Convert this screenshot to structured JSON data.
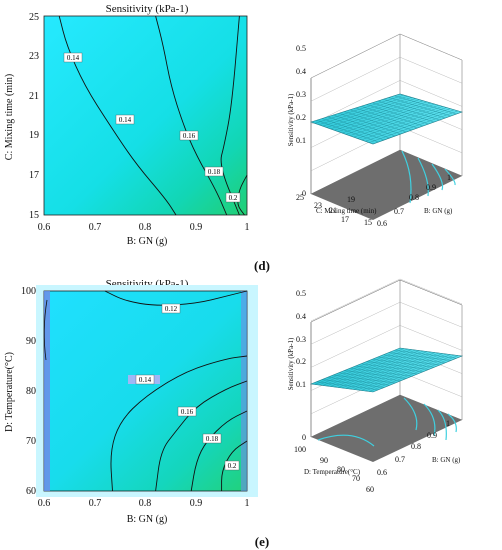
{
  "panels": [
    {
      "label": "(d)",
      "contour": {
        "title": "Sensitivity (kPa-1)",
        "xlabel": "B: GN (g)",
        "ylabel": "C: Mixing time (min)",
        "xticks": [
          "0.6",
          "0.7",
          "0.8",
          "0.9",
          "1"
        ],
        "yticks": [
          "15",
          "17",
          "19",
          "21",
          "23",
          "25"
        ]
      },
      "surface": {
        "zlabel": "Sensitivity (kPa-1)",
        "zticks": [
          "0",
          "0.1",
          "0.2",
          "0.3",
          "0.4",
          "0.5"
        ],
        "xlabel": "B: GN (g)",
        "xticks": [
          "0.6",
          "0.7",
          "0.8",
          "0.9",
          "1"
        ],
        "ylabel": "C: Mixing time (min)",
        "yticks": [
          "15",
          "17",
          "19",
          "21",
          "23",
          "25"
        ]
      }
    },
    {
      "label": "(e)",
      "contour": {
        "title": "Sensitivity (kPa-1)",
        "xlabel": "B: GN (g)",
        "ylabel": "D: Temperature(°C)",
        "xticks": [
          "0.6",
          "0.7",
          "0.8",
          "0.9",
          "1"
        ],
        "yticks": [
          "60",
          "70",
          "80",
          "90",
          "100"
        ]
      },
      "surface": {
        "zlabel": "Sensitivity (kPa-1)",
        "zticks": [
          "0",
          "0.1",
          "0.2",
          "0.3",
          "0.4",
          "0.5"
        ],
        "xlabel": "B: GN (g)",
        "xticks": [
          "0.6",
          "0.7",
          "0.8",
          "0.9",
          "1"
        ],
        "ylabel": "D: Temperature(°C)",
        "yticks": [
          "60",
          "70",
          "80",
          "90",
          "100"
        ]
      }
    }
  ],
  "colors": {
    "low": "#1ee6ff",
    "mid": "#12d8c8",
    "high": "#22d47a",
    "floor": "#6b6b6b",
    "contour_line": "#111111"
  },
  "chart_data": [
    {
      "type": "heatmap",
      "title": "Sensitivity (kPa-1)",
      "xlabel": "B: GN (g)",
      "ylabel": "C: Mixing time (min)",
      "xlim": [
        0.6,
        1
      ],
      "ylim": [
        15,
        25
      ],
      "contours": [
        {
          "level": 0.14,
          "label": "0.14",
          "points": [
            [
              0.63,
              25
            ],
            [
              0.645,
              23.5
            ],
            [
              0.68,
              21.5
            ],
            [
              0.73,
              19.5
            ],
            [
              0.78,
              17.6
            ],
            [
              0.84,
              15.8
            ],
            [
              0.86,
              15
            ]
          ]
        },
        {
          "level": 0.16,
          "label": "0.16",
          "points": [
            [
              0.82,
              25
            ],
            [
              0.835,
              23.5
            ],
            [
              0.85,
              21.5
            ],
            [
              0.875,
              19.5
            ],
            [
              0.9,
              18
            ],
            [
              0.94,
              16.2
            ],
            [
              0.96,
              15
            ]
          ]
        },
        {
          "level": 0.18,
          "label": "0.18",
          "points": [
            [
              0.985,
              25
            ],
            [
              0.97,
              20.5
            ],
            [
              0.955,
              18.5
            ],
            [
              0.945,
              17.5
            ],
            [
              0.985,
              15
            ]
          ]
        },
        {
          "level": 0.2,
          "label": "0.2",
          "points": [
            [
              1,
              17
            ],
            [
              0.985,
              16.3
            ],
            [
              0.98,
              15.5
            ],
            [
              0.995,
              15
            ]
          ]
        }
      ]
    },
    {
      "type": "surface",
      "zlabel": "Sensitivity (kPa-1)",
      "xlabel": "B: GN (g)",
      "ylabel": "C: Mixing time (min)",
      "xlim": [
        0.6,
        1
      ],
      "ylim": [
        15,
        25
      ],
      "zlim": [
        0,
        0.5
      ]
    },
    {
      "type": "heatmap",
      "title": "Sensitivity (kPa-1)",
      "xlabel": "B: GN (g)",
      "ylabel": "D: Temperature(°C)",
      "xlim": [
        0.6,
        1
      ],
      "ylim": [
        60,
        100
      ],
      "contours": [
        {
          "level": 0.12,
          "label": "0.12",
          "points": [
            [
              0.72,
              100
            ],
            [
              0.76,
              98
            ],
            [
              0.82,
              97
            ],
            [
              0.9,
              97.5
            ],
            [
              0.96,
              99
            ],
            [
              1,
              100
            ]
          ]
        },
        {
          "level": 0.14,
          "label": "0.14",
          "points": [
            [
              0.735,
              60
            ],
            [
              0.73,
              68
            ],
            [
              0.75,
              74
            ],
            [
              0.8,
              79
            ],
            [
              0.88,
              84
            ],
            [
              0.96,
              86.5
            ],
            [
              1,
              87
            ]
          ]
        },
        {
          "level": 0.16,
          "label": "0.16",
          "points": [
            [
              0.82,
              60
            ],
            [
              0.83,
              68
            ],
            [
              0.86,
              72
            ],
            [
              0.9,
              77
            ],
            [
              0.96,
              80.5
            ],
            [
              1,
              82
            ]
          ]
        },
        {
          "level": 0.18,
          "label": "0.18",
          "points": [
            [
              0.89,
              60
            ],
            [
              0.9,
              66
            ],
            [
              0.92,
              70
            ],
            [
              0.96,
              74
            ],
            [
              1,
              76
            ]
          ]
        },
        {
          "level": 0.2,
          "label": "0.2",
          "points": [
            [
              0.95,
              60
            ],
            [
              0.95,
              64
            ],
            [
              0.97,
              68
            ],
            [
              1,
              70
            ]
          ]
        }
      ]
    },
    {
      "type": "surface",
      "zlabel": "Sensitivity (kPa-1)",
      "xlabel": "B: GN (g)",
      "ylabel": "D: Temperature(°C)",
      "xlim": [
        0.6,
        1
      ],
      "ylim": [
        60,
        100
      ],
      "zlim": [
        0,
        0.5
      ]
    }
  ]
}
